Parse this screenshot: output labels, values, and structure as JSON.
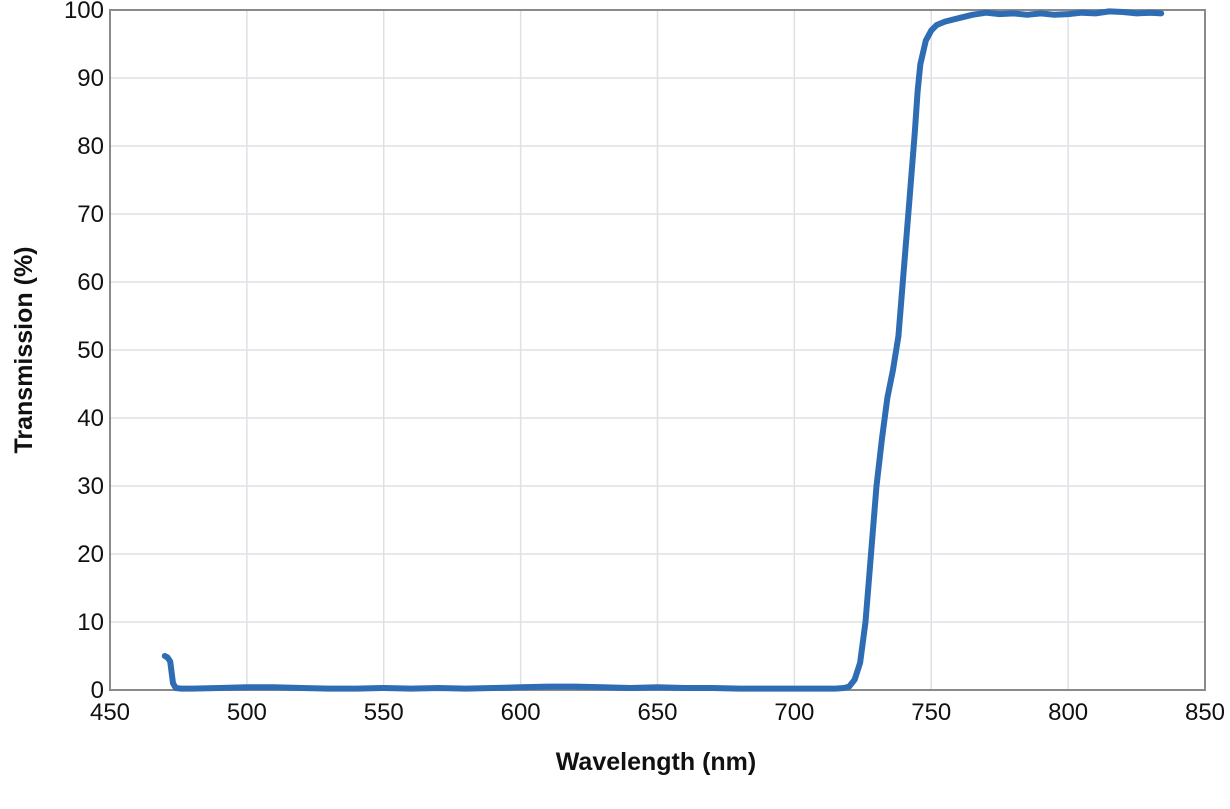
{
  "chart_data": {
    "type": "line",
    "title": "",
    "xlabel": "Wavelength (nm)",
    "ylabel": "Transmission (%)",
    "xlim": [
      450,
      850
    ],
    "ylim": [
      0,
      100
    ],
    "xticks": [
      450,
      500,
      550,
      600,
      650,
      700,
      750,
      800,
      850
    ],
    "yticks": [
      0,
      10,
      20,
      30,
      40,
      50,
      60,
      70,
      80,
      90,
      100
    ],
    "grid": true,
    "legend": "none",
    "colors": {
      "line": "#2e6db4",
      "grid": "#dde1e6",
      "frame": "#8a8a8a"
    },
    "series": [
      {
        "x": [
          470,
          471,
          472,
          473,
          474,
          476,
          480,
          490,
          500,
          510,
          520,
          530,
          540,
          550,
          560,
          570,
          580,
          590,
          600,
          610,
          620,
          630,
          640,
          650,
          660,
          670,
          680,
          690,
          700,
          710,
          715,
          718,
          720,
          722,
          724,
          726,
          728,
          730,
          732,
          734,
          736,
          738,
          740,
          742,
          744,
          745,
          746,
          748,
          750,
          752,
          755,
          760,
          765,
          770,
          775,
          780,
          785,
          790,
          795,
          800,
          805,
          810,
          815,
          820,
          825,
          830,
          834
        ],
        "y": [
          5.0,
          4.8,
          4.2,
          1.0,
          0.3,
          0.2,
          0.2,
          0.3,
          0.4,
          0.4,
          0.3,
          0.2,
          0.2,
          0.3,
          0.2,
          0.3,
          0.2,
          0.3,
          0.4,
          0.5,
          0.5,
          0.4,
          0.3,
          0.4,
          0.3,
          0.3,
          0.2,
          0.2,
          0.2,
          0.2,
          0.2,
          0.3,
          0.5,
          1.5,
          4.0,
          10.0,
          20.0,
          30.0,
          37.0,
          43.0,
          47.0,
          52.0,
          62.0,
          72.0,
          82.0,
          88.0,
          92.0,
          95.5,
          97.0,
          97.8,
          98.3,
          98.8,
          99.3,
          99.6,
          99.4,
          99.5,
          99.3,
          99.5,
          99.3,
          99.4,
          99.6,
          99.5,
          99.8,
          99.7,
          99.5,
          99.6,
          99.5
        ]
      }
    ]
  }
}
